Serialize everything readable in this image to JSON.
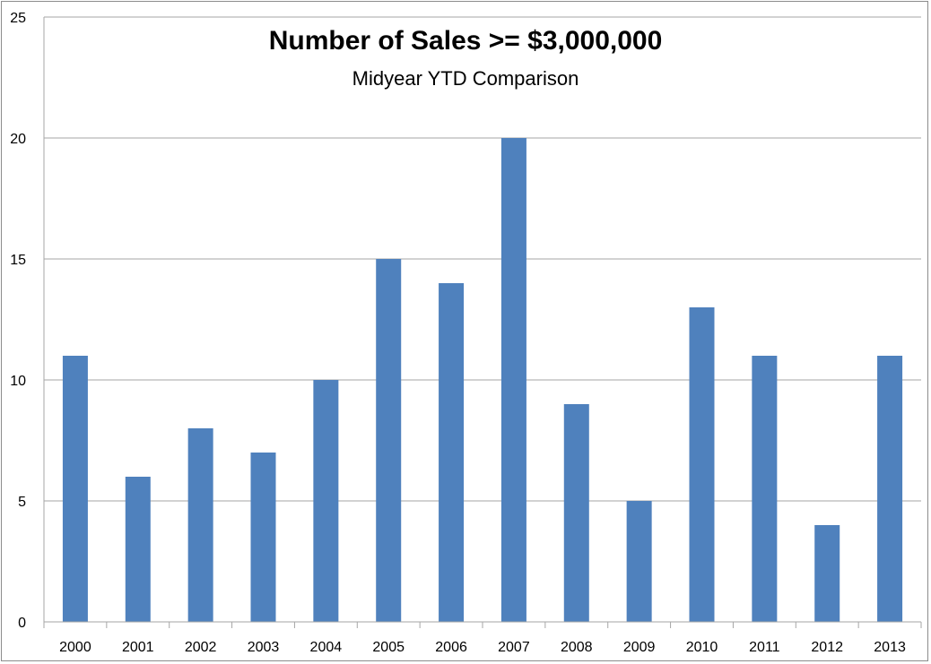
{
  "chart_data": {
    "type": "bar",
    "title": "Number of Sales >= $3,000,000",
    "subtitle": "Midyear YTD Comparison",
    "categories": [
      "2000",
      "2001",
      "2002",
      "2003",
      "2004",
      "2005",
      "2006",
      "2007",
      "2008",
      "2009",
      "2010",
      "2011",
      "2012",
      "2013"
    ],
    "values": [
      11,
      6,
      8,
      7,
      10,
      15,
      14,
      20,
      9,
      5,
      13,
      11,
      4,
      11
    ],
    "ylim": [
      0,
      25
    ],
    "yticks": [
      0,
      5,
      10,
      15,
      20,
      25
    ],
    "grid": true,
    "legend": "none",
    "bar_color": "#4f81bd",
    "grid_color": "#a6a6a6"
  }
}
